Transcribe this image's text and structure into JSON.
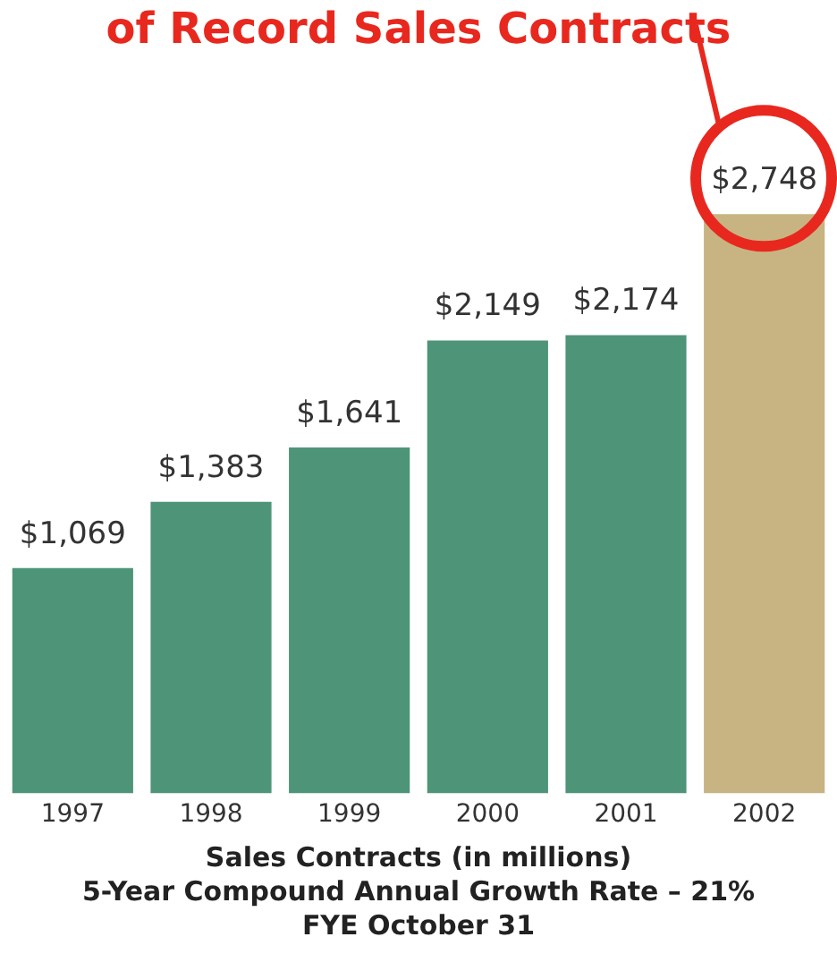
{
  "chart_data": {
    "type": "bar",
    "categories": [
      "1997",
      "1998",
      "1999",
      "2000",
      "2001",
      "2002"
    ],
    "values": [
      1069,
      1383,
      1641,
      2149,
      2174,
      2748
    ],
    "value_labels": [
      "$1,069",
      "$1,383",
      "$1,641",
      "$2,149",
      "$2,174",
      "$2,748"
    ],
    "colors": [
      "#4e9478",
      "#4e9478",
      "#4e9478",
      "#4e9478",
      "#4e9478",
      "#c8b482"
    ],
    "xlabel": "Sales Contracts (in millions)",
    "annotations": [
      "of Record Sales Contracts",
      "5-Year Compound Annual Growth Rate – 21%",
      "FYE October 31"
    ],
    "grid": false,
    "legend": false
  }
}
